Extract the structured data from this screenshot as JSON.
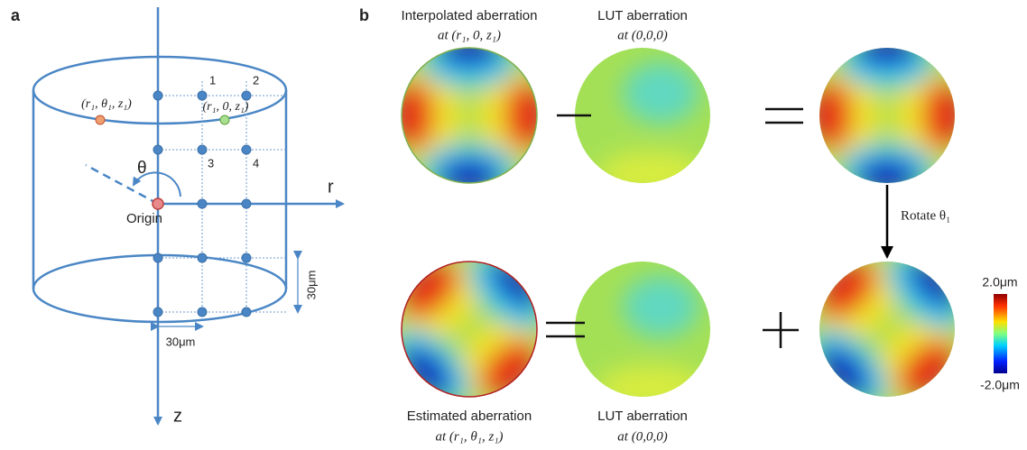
{
  "panel_a": {
    "label": "a",
    "origin_label": "Origin",
    "axis_r": "r",
    "axis_z": "z",
    "theta": "θ",
    "point_1": "(r₁, θ₁, z₁)",
    "point_2": "(r₁, 0, z₁)",
    "grid_labels": [
      "1",
      "2",
      "3",
      "4"
    ],
    "scale_vertical": "30μm",
    "scale_horizontal": "30μm"
  },
  "panel_b": {
    "label": "b",
    "top": [
      {
        "title": "Interpolated aberration",
        "subtitle": "at (r₁, 0, z₁)"
      },
      {
        "title": "LUT aberration",
        "subtitle": "at (0,0,0)"
      }
    ],
    "bottom": [
      {
        "title": "Estimated aberration",
        "subtitle": "at (r₁, θ₁, z₁)"
      },
      {
        "title": "LUT aberration",
        "subtitle": "at (0,0,0)"
      }
    ],
    "rotate": "Rotate θ₁",
    "colorbar": {
      "max": "2.0μm",
      "min": "-2.0μm"
    }
  }
}
